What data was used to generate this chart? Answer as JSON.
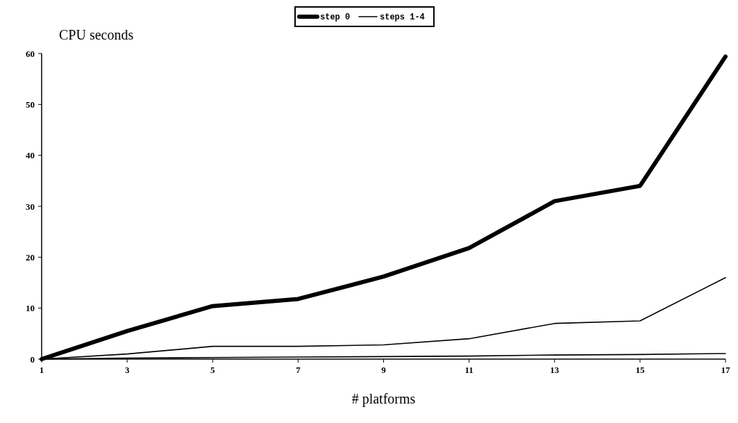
{
  "chart_data": {
    "type": "line",
    "ylabel": "CPU seconds",
    "xlabel": "# platforms",
    "x": [
      1,
      3,
      5,
      7,
      9,
      11,
      13,
      15,
      17
    ],
    "series": [
      {
        "name": "step 0",
        "color": "#000000",
        "values": [
          0,
          5.5,
          10.4,
          11.8,
          16.2,
          21.8,
          31,
          34,
          59.4
        ]
      },
      {
        "name": "steps 1-4",
        "color": "#000000",
        "values": [
          0,
          1,
          2.5,
          2.5,
          2.8,
          4,
          7,
          7.5,
          16
        ]
      },
      {
        "color": "#000000",
        "values": [
          0,
          0.2,
          0.3,
          0.4,
          0.5,
          0.6,
          0.8,
          0.9,
          1.1
        ]
      }
    ],
    "xlim": [
      1,
      17
    ],
    "xticks": [
      1,
      3,
      5,
      7,
      9,
      11,
      13,
      15,
      17
    ],
    "ylim": [
      0,
      60
    ],
    "yticks": [
      0,
      10,
      20,
      30,
      40,
      50,
      60
    ],
    "grid": false,
    "legend": "top",
    "marker": "none",
    "line_style": "solid"
  }
}
